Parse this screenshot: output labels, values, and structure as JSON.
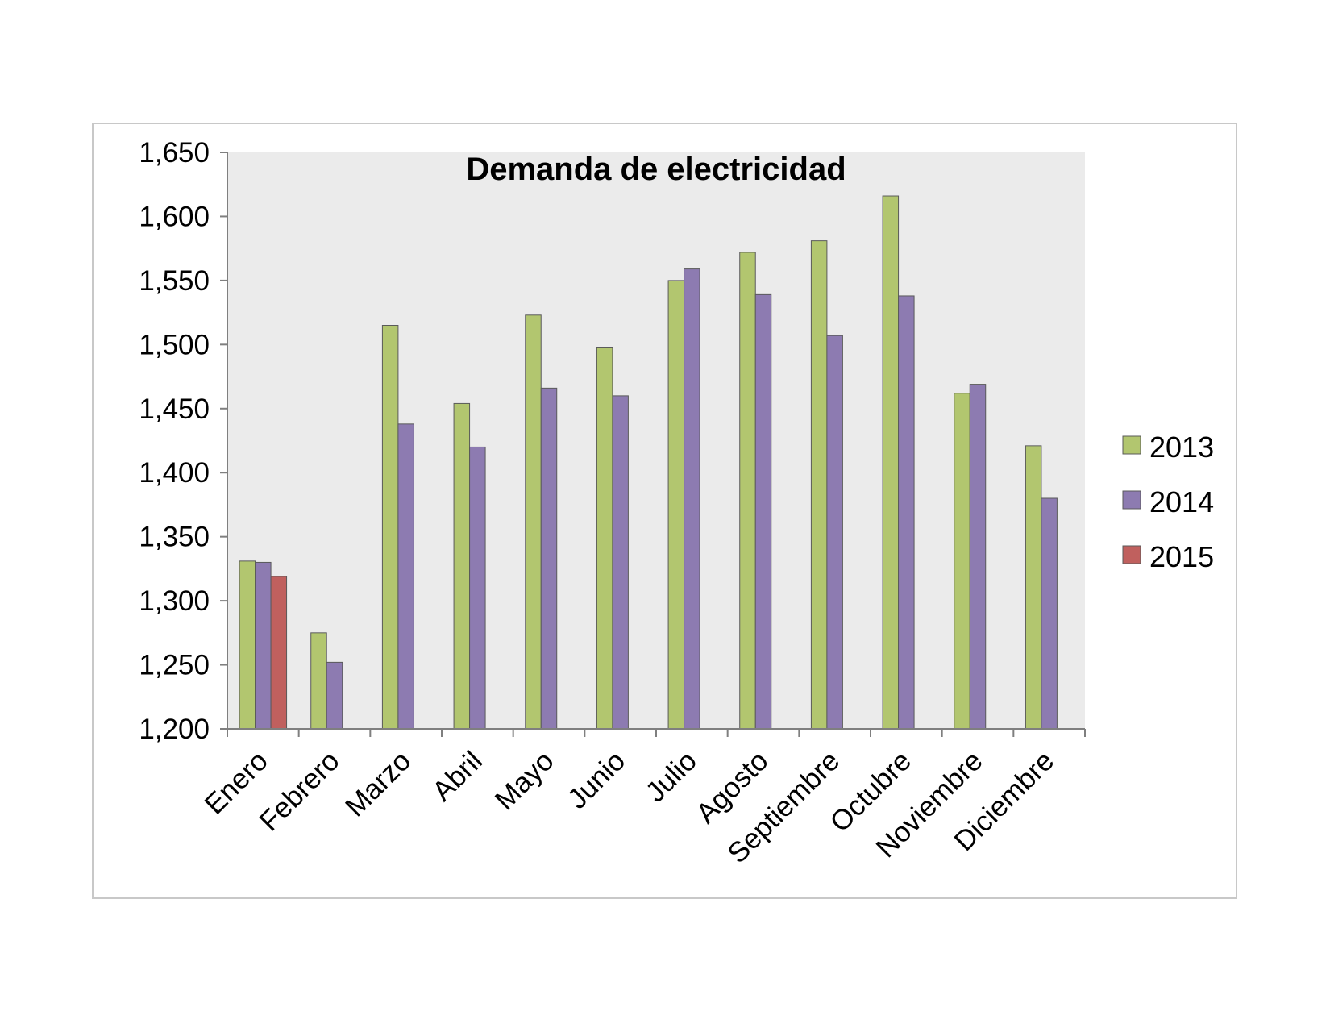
{
  "chart_data": {
    "type": "bar",
    "title": "Demanda de electricidad",
    "xlabel": "",
    "ylabel": "",
    "ylim": [
      1200,
      1650
    ],
    "yticks": [
      "1,200",
      "1,250",
      "1,300",
      "1,350",
      "1,400",
      "1,450",
      "1,500",
      "1,550",
      "1,600",
      "1,650"
    ],
    "categories": [
      "Enero",
      "Febrero",
      "Marzo",
      "Abril",
      "Mayo",
      "Junio",
      "Julio",
      "Agosto",
      "Septiembre",
      "Octubre",
      "Noviembre",
      "Diciembre"
    ],
    "series": [
      {
        "name": "2013",
        "color": "#b2c66f",
        "values": [
          1331,
          1275,
          1515,
          1454,
          1523,
          1498,
          1550,
          1572,
          1581,
          1616,
          1462,
          1421
        ]
      },
      {
        "name": "2014",
        "color": "#8d7bb1",
        "values": [
          1330,
          1252,
          1438,
          1420,
          1466,
          1460,
          1559,
          1539,
          1507,
          1538,
          1469,
          1380
        ]
      },
      {
        "name": "2015",
        "color": "#c0605e",
        "values": [
          1319,
          null,
          null,
          null,
          null,
          null,
          null,
          null,
          null,
          null,
          null,
          null
        ]
      }
    ],
    "grid": false,
    "plot_background": "#ebebeb",
    "legend_position": "right"
  }
}
